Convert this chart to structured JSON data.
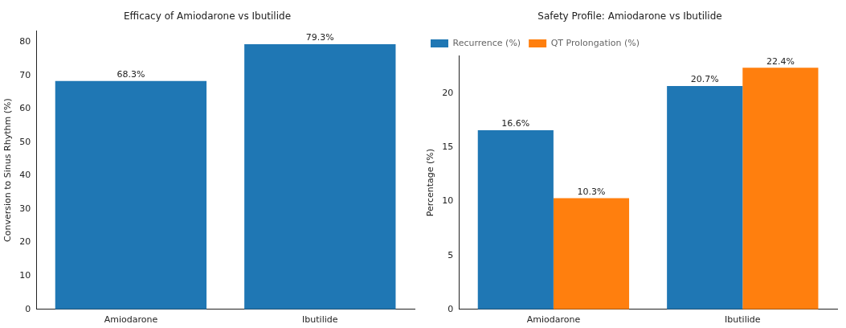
{
  "chart_data": [
    {
      "type": "bar",
      "title": "Efficacy of Amiodarone vs Ibutilide",
      "ylabel": "Conversion to Sinus Rhythm (%)",
      "categories": [
        "Amiodarone",
        "Ibutilide"
      ],
      "values": [
        68.3,
        79.3
      ],
      "color": "#1f77b4",
      "value_labels": [
        "68.3%",
        "79.3%"
      ],
      "ylim": [
        0,
        83.3
      ],
      "yticks": [
        0,
        10,
        20,
        30,
        40,
        50,
        60,
        70,
        80
      ],
      "grid": false,
      "legend": false
    },
    {
      "type": "bar",
      "title": "Safety Profile: Amiodarone vs Ibutilide",
      "ylabel": "Percentage (%)",
      "categories": [
        "Amiodarone",
        "Ibutilide"
      ],
      "series": [
        {
          "name": "Recurrence (%)",
          "color": "#1f77b4",
          "values": [
            16.6,
            20.7
          ],
          "value_labels": [
            "16.6%",
            "20.7%"
          ]
        },
        {
          "name": "QT Prolongation (%)",
          "color": "#ff7f0e",
          "values": [
            10.3,
            22.4
          ],
          "value_labels": [
            "10.3%",
            "22.4%"
          ]
        }
      ],
      "ylim": [
        0,
        23.5
      ],
      "yticks": [
        0,
        5,
        10,
        15,
        20
      ],
      "grid": false,
      "legend": "top left"
    }
  ]
}
